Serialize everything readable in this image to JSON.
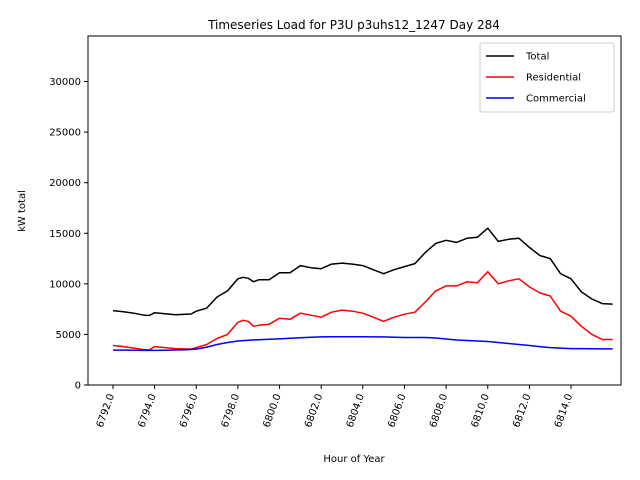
{
  "chart_data": {
    "type": "line",
    "title": "Timeseries Load for P3U p3uhs12_1247  Day 284",
    "xlabel": "Hour of Year",
    "ylabel": "kW total",
    "xlim": [
      6790.8,
      6816.4
    ],
    "ylim": [
      0,
      34500
    ],
    "x_ticks": [
      6792,
      6794,
      6796,
      6798,
      6800,
      6802,
      6804,
      6806,
      6808,
      6810,
      6812,
      6814
    ],
    "x_tick_labels": [
      "6792.0",
      "6794.0",
      "6796.0",
      "6798.0",
      "6800.0",
      "6802.0",
      "6804.0",
      "6806.0",
      "6808.0",
      "6810.0",
      "6812.0",
      "6814.0"
    ],
    "y_ticks": [
      0,
      5000,
      10000,
      15000,
      20000,
      25000,
      30000
    ],
    "y_tick_labels": [
      "0",
      "5000",
      "10000",
      "15000",
      "20000",
      "25000",
      "30000"
    ],
    "legend_position": "top-right",
    "series": [
      {
        "name": "Total",
        "color": "#000000",
        "points": [
          [
            6792.0,
            7350
          ],
          [
            6792.5,
            7250
          ],
          [
            6793.0,
            7100
          ],
          [
            6793.5,
            6900
          ],
          [
            6793.75,
            6880
          ],
          [
            6794.0,
            7150
          ],
          [
            6794.5,
            7050
          ],
          [
            6795.0,
            6950
          ],
          [
            6795.75,
            7020
          ],
          [
            6796.0,
            7300
          ],
          [
            6796.5,
            7600
          ],
          [
            6797.0,
            8700
          ],
          [
            6797.5,
            9300
          ],
          [
            6798.0,
            10500
          ],
          [
            6798.25,
            10650
          ],
          [
            6798.5,
            10550
          ],
          [
            6798.75,
            10200
          ],
          [
            6799.0,
            10400
          ],
          [
            6799.5,
            10400
          ],
          [
            6800.0,
            11100
          ],
          [
            6800.5,
            11100
          ],
          [
            6801.0,
            11800
          ],
          [
            6801.5,
            11600
          ],
          [
            6802.0,
            11500
          ],
          [
            6802.5,
            11950
          ],
          [
            6803.0,
            12050
          ],
          [
            6803.5,
            11950
          ],
          [
            6804.0,
            11800
          ],
          [
            6804.5,
            11400
          ],
          [
            6805.0,
            11000
          ],
          [
            6805.5,
            11400
          ],
          [
            6806.0,
            11700
          ],
          [
            6806.5,
            12000
          ],
          [
            6807.0,
            13100
          ],
          [
            6807.5,
            14000
          ],
          [
            6808.0,
            14300
          ],
          [
            6808.5,
            14100
          ],
          [
            6809.0,
            14500
          ],
          [
            6809.5,
            14600
          ],
          [
            6810.0,
            15500
          ],
          [
            6810.5,
            14200
          ],
          [
            6811.0,
            14400
          ],
          [
            6811.5,
            14500
          ],
          [
            6812.0,
            13600
          ],
          [
            6812.5,
            12800
          ],
          [
            6813.0,
            12500
          ],
          [
            6813.5,
            11000
          ],
          [
            6814.0,
            10500
          ],
          [
            6814.5,
            9200
          ],
          [
            6815.0,
            8500
          ],
          [
            6815.5,
            8050
          ],
          [
            6816.0,
            8000
          ]
        ]
      },
      {
        "name": "Residential",
        "color": "#ff0000",
        "points": [
          [
            6792.0,
            3900
          ],
          [
            6792.5,
            3800
          ],
          [
            6793.0,
            3650
          ],
          [
            6793.5,
            3500
          ],
          [
            6793.75,
            3480
          ],
          [
            6794.0,
            3800
          ],
          [
            6794.5,
            3700
          ],
          [
            6795.0,
            3600
          ],
          [
            6795.75,
            3550
          ],
          [
            6796.0,
            3700
          ],
          [
            6796.5,
            4000
          ],
          [
            6797.0,
            4600
          ],
          [
            6797.5,
            5000
          ],
          [
            6798.0,
            6200
          ],
          [
            6798.25,
            6400
          ],
          [
            6798.5,
            6300
          ],
          [
            6798.75,
            5800
          ],
          [
            6799.0,
            5900
          ],
          [
            6799.5,
            6000
          ],
          [
            6800.0,
            6600
          ],
          [
            6800.5,
            6500
          ],
          [
            6801.0,
            7100
          ],
          [
            6801.5,
            6900
          ],
          [
            6802.0,
            6700
          ],
          [
            6802.5,
            7200
          ],
          [
            6803.0,
            7400
          ],
          [
            6803.5,
            7300
          ],
          [
            6804.0,
            7100
          ],
          [
            6804.5,
            6700
          ],
          [
            6805.0,
            6300
          ],
          [
            6805.5,
            6700
          ],
          [
            6806.0,
            7000
          ],
          [
            6806.5,
            7200
          ],
          [
            6807.0,
            8200
          ],
          [
            6807.5,
            9300
          ],
          [
            6808.0,
            9800
          ],
          [
            6808.5,
            9800
          ],
          [
            6809.0,
            10200
          ],
          [
            6809.5,
            10100
          ],
          [
            6810.0,
            11200
          ],
          [
            6810.5,
            10000
          ],
          [
            6811.0,
            10300
          ],
          [
            6811.5,
            10500
          ],
          [
            6812.0,
            9700
          ],
          [
            6812.5,
            9100
          ],
          [
            6813.0,
            8800
          ],
          [
            6813.5,
            7300
          ],
          [
            6814.0,
            6800
          ],
          [
            6814.5,
            5800
          ],
          [
            6815.0,
            5000
          ],
          [
            6815.5,
            4500
          ],
          [
            6816.0,
            4500
          ]
        ]
      },
      {
        "name": "Commercial",
        "color": "#0000ff",
        "points": [
          [
            6792.0,
            3450
          ],
          [
            6792.5,
            3450
          ],
          [
            6793.0,
            3440
          ],
          [
            6793.5,
            3420
          ],
          [
            6794.0,
            3420
          ],
          [
            6794.5,
            3440
          ],
          [
            6795.0,
            3460
          ],
          [
            6795.5,
            3480
          ],
          [
            6796.0,
            3550
          ],
          [
            6796.5,
            3750
          ],
          [
            6797.0,
            4000
          ],
          [
            6797.5,
            4200
          ],
          [
            6798.0,
            4350
          ],
          [
            6798.5,
            4420
          ],
          [
            6799.0,
            4480
          ],
          [
            6799.5,
            4520
          ],
          [
            6800.0,
            4560
          ],
          [
            6800.5,
            4620
          ],
          [
            6801.0,
            4680
          ],
          [
            6801.5,
            4720
          ],
          [
            6802.0,
            4750
          ],
          [
            6802.5,
            4760
          ],
          [
            6803.0,
            4760
          ],
          [
            6803.5,
            4760
          ],
          [
            6804.0,
            4760
          ],
          [
            6804.5,
            4750
          ],
          [
            6805.0,
            4750
          ],
          [
            6805.5,
            4730
          ],
          [
            6806.0,
            4700
          ],
          [
            6806.5,
            4700
          ],
          [
            6807.0,
            4700
          ],
          [
            6807.5,
            4650
          ],
          [
            6808.0,
            4550
          ],
          [
            6808.5,
            4450
          ],
          [
            6809.0,
            4400
          ],
          [
            6809.5,
            4350
          ],
          [
            6810.0,
            4300
          ],
          [
            6810.5,
            4200
          ],
          [
            6811.0,
            4100
          ],
          [
            6811.5,
            4000
          ],
          [
            6812.0,
            3900
          ],
          [
            6812.5,
            3800
          ],
          [
            6813.0,
            3700
          ],
          [
            6813.5,
            3650
          ],
          [
            6814.0,
            3600
          ],
          [
            6814.5,
            3600
          ],
          [
            6815.0,
            3580
          ],
          [
            6815.5,
            3570
          ],
          [
            6816.0,
            3570
          ]
        ]
      }
    ]
  }
}
